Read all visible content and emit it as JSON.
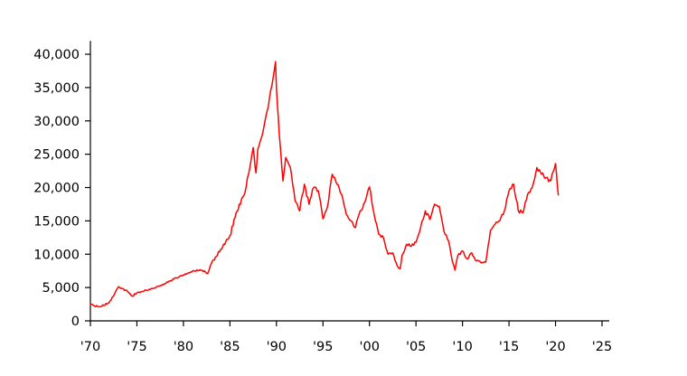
{
  "chart_data": {
    "type": "line",
    "title": "",
    "xlabel": "",
    "ylabel": "",
    "xlim": [
      1970,
      2025
    ],
    "ylim": [
      0,
      42000
    ],
    "grid": false,
    "legend": "none",
    "x_ticks": [
      {
        "value": 1970,
        "label": "'70"
      },
      {
        "value": 1975,
        "label": "'75"
      },
      {
        "value": 1980,
        "label": "'80"
      },
      {
        "value": 1985,
        "label": "'85"
      },
      {
        "value": 1990,
        "label": "'90"
      },
      {
        "value": 1995,
        "label": "'95"
      },
      {
        "value": 2000,
        "label": "'00"
      },
      {
        "value": 2005,
        "label": "'05"
      },
      {
        "value": 2010,
        "label": "'10"
      },
      {
        "value": 2015,
        "label": "'15"
      },
      {
        "value": 2020,
        "label": "'20"
      },
      {
        "value": 2025,
        "label": "'25"
      }
    ],
    "y_ticks": [
      {
        "value": 0,
        "label": "0"
      },
      {
        "value": 5000,
        "label": "5,000"
      },
      {
        "value": 10000,
        "label": "10,000"
      },
      {
        "value": 15000,
        "label": "15,000"
      },
      {
        "value": 20000,
        "label": "20,000"
      },
      {
        "value": 25000,
        "label": "25,000"
      },
      {
        "value": 30000,
        "label": "30,000"
      },
      {
        "value": 35000,
        "label": "35,000"
      },
      {
        "value": 40000,
        "label": "40,000"
      }
    ],
    "series": [
      {
        "color": "#ff0000",
        "x": [
          1970.0,
          1971.0,
          1972.0,
          1973.0,
          1974.0,
          1974.5,
          1975.0,
          1976.0,
          1977.0,
          1978.0,
          1979.0,
          1980.0,
          1981.0,
          1982.0,
          1982.6,
          1983.0,
          1984.0,
          1985.0,
          1986.0,
          1986.5,
          1987.0,
          1987.5,
          1987.8,
          1988.0,
          1988.5,
          1989.0,
          1989.5,
          1989.9,
          1990.0,
          1990.3,
          1990.7,
          1991.0,
          1991.5,
          1992.0,
          1992.5,
          1993.0,
          1993.5,
          1994.0,
          1994.5,
          1995.0,
          1995.5,
          1996.0,
          1996.5,
          1997.0,
          1997.5,
          1998.0,
          1998.5,
          1999.0,
          1999.5,
          2000.0,
          2000.5,
          2001.0,
          2001.5,
          2002.0,
          2002.5,
          2003.0,
          2003.3,
          2003.5,
          2004.0,
          2004.5,
          2005.0,
          2005.5,
          2006.0,
          2006.5,
          2007.0,
          2007.5,
          2008.0,
          2008.5,
          2008.9,
          2009.2,
          2009.5,
          2010.0,
          2010.5,
          2011.0,
          2011.5,
          2012.0,
          2012.5,
          2013.0,
          2013.5,
          2014.0,
          2014.5,
          2015.0,
          2015.5,
          2016.0,
          2016.5,
          2017.0,
          2017.5,
          2018.0,
          2018.5,
          2019.0,
          2019.5,
          2020.0,
          2020.3
        ],
        "values": [
          2400,
          2100,
          2700,
          5100,
          4400,
          3700,
          4200,
          4600,
          5000,
          5600,
          6300,
          6900,
          7500,
          7600,
          7100,
          8600,
          10700,
          12800,
          17500,
          18800,
          22000,
          26000,
          22200,
          25800,
          28000,
          31500,
          35200,
          38900,
          35000,
          28000,
          21000,
          24500,
          23000,
          18000,
          16500,
          20500,
          17500,
          20000,
          19500,
          15300,
          17200,
          22000,
          20500,
          19000,
          16000,
          15000,
          14000,
          16500,
          17800,
          20100,
          16000,
          13000,
          12500,
          10000,
          10200,
          8200,
          7800,
          9800,
          11500,
          11200,
          11800,
          14000,
          16500,
          15200,
          17500,
          17200,
          13500,
          12000,
          9000,
          7600,
          9800,
          10500,
          9300,
          10200,
          9000,
          8700,
          8800,
          13500,
          14500,
          15000,
          16500,
          19500,
          20500,
          16500,
          16200,
          19000,
          20000,
          23000,
          22000,
          21500,
          21000,
          23600,
          18900
        ]
      }
    ]
  }
}
